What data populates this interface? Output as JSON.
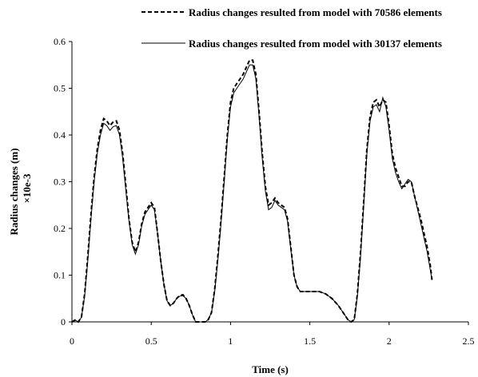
{
  "chart_data": {
    "type": "line",
    "title": "",
    "xlabel": "Time (s)",
    "ylabel": "Radius changes (m)",
    "ylabel_multiplier": "×10e-3",
    "xlim": [
      0,
      2.5
    ],
    "ylim": [
      0,
      0.6
    ],
    "x_ticks": [
      "0",
      "0.5",
      "1",
      "1.5",
      "2",
      "2.5"
    ],
    "y_ticks": [
      "0",
      "0.1",
      "0.2",
      "0.3",
      "0.4",
      "0.5",
      "0.6"
    ],
    "grid": false,
    "legend_position": "top-right",
    "series": [
      {
        "name": "Radius changes resulted from model with 70586 elements",
        "style": "dashed",
        "color": "#000000",
        "points": [
          [
            0,
            0.0
          ],
          [
            0.02,
            0.004
          ],
          [
            0.04,
            0.0
          ],
          [
            0.06,
            0.01
          ],
          [
            0.08,
            0.06
          ],
          [
            0.1,
            0.14
          ],
          [
            0.12,
            0.23
          ],
          [
            0.14,
            0.31
          ],
          [
            0.16,
            0.37
          ],
          [
            0.18,
            0.41
          ],
          [
            0.2,
            0.435
          ],
          [
            0.22,
            0.43
          ],
          [
            0.24,
            0.42
          ],
          [
            0.26,
            0.428
          ],
          [
            0.28,
            0.43
          ],
          [
            0.3,
            0.41
          ],
          [
            0.32,
            0.36
          ],
          [
            0.34,
            0.29
          ],
          [
            0.36,
            0.22
          ],
          [
            0.38,
            0.17
          ],
          [
            0.4,
            0.15
          ],
          [
            0.42,
            0.17
          ],
          [
            0.44,
            0.21
          ],
          [
            0.46,
            0.235
          ],
          [
            0.48,
            0.245
          ],
          [
            0.5,
            0.255
          ],
          [
            0.52,
            0.245
          ],
          [
            0.54,
            0.19
          ],
          [
            0.56,
            0.13
          ],
          [
            0.58,
            0.08
          ],
          [
            0.6,
            0.045
          ],
          [
            0.62,
            0.035
          ],
          [
            0.64,
            0.04
          ],
          [
            0.66,
            0.05
          ],
          [
            0.68,
            0.057
          ],
          [
            0.7,
            0.058
          ],
          [
            0.72,
            0.05
          ],
          [
            0.74,
            0.035
          ],
          [
            0.76,
            0.015
          ],
          [
            0.78,
            0.0
          ],
          [
            0.8,
            0.0
          ],
          [
            0.84,
            0.0
          ],
          [
            0.86,
            0.005
          ],
          [
            0.88,
            0.02
          ],
          [
            0.9,
            0.07
          ],
          [
            0.92,
            0.14
          ],
          [
            0.94,
            0.22
          ],
          [
            0.96,
            0.31
          ],
          [
            0.98,
            0.4
          ],
          [
            1.0,
            0.47
          ],
          [
            1.02,
            0.5
          ],
          [
            1.04,
            0.51
          ],
          [
            1.06,
            0.52
          ],
          [
            1.08,
            0.53
          ],
          [
            1.1,
            0.545
          ],
          [
            1.12,
            0.56
          ],
          [
            1.14,
            0.56
          ],
          [
            1.16,
            0.53
          ],
          [
            1.18,
            0.45
          ],
          [
            1.2,
            0.36
          ],
          [
            1.22,
            0.29
          ],
          [
            1.24,
            0.25
          ],
          [
            1.26,
            0.255
          ],
          [
            1.28,
            0.265
          ],
          [
            1.3,
            0.255
          ],
          [
            1.32,
            0.25
          ],
          [
            1.34,
            0.245
          ],
          [
            1.36,
            0.22
          ],
          [
            1.38,
            0.16
          ],
          [
            1.4,
            0.1
          ],
          [
            1.42,
            0.075
          ],
          [
            1.44,
            0.065
          ],
          [
            1.46,
            0.065
          ],
          [
            1.5,
            0.065
          ],
          [
            1.56,
            0.065
          ],
          [
            1.6,
            0.06
          ],
          [
            1.64,
            0.05
          ],
          [
            1.68,
            0.035
          ],
          [
            1.72,
            0.015
          ],
          [
            1.74,
            0.005
          ],
          [
            1.76,
            0.0
          ],
          [
            1.78,
            0.005
          ],
          [
            1.8,
            0.06
          ],
          [
            1.82,
            0.15
          ],
          [
            1.84,
            0.26
          ],
          [
            1.86,
            0.37
          ],
          [
            1.88,
            0.44
          ],
          [
            1.9,
            0.47
          ],
          [
            1.92,
            0.475
          ],
          [
            1.94,
            0.46
          ],
          [
            1.96,
            0.475
          ],
          [
            1.98,
            0.47
          ],
          [
            2.0,
            0.42
          ],
          [
            2.02,
            0.36
          ],
          [
            2.04,
            0.33
          ],
          [
            2.06,
            0.31
          ],
          [
            2.08,
            0.29
          ],
          [
            2.1,
            0.29
          ],
          [
            2.12,
            0.3
          ],
          [
            2.14,
            0.3
          ],
          [
            2.16,
            0.27
          ],
          [
            2.18,
            0.245
          ],
          [
            2.2,
            0.22
          ],
          [
            2.22,
            0.19
          ],
          [
            2.24,
            0.16
          ],
          [
            2.26,
            0.12
          ],
          [
            2.27,
            0.09
          ]
        ]
      },
      {
        "name": "Radius changes resulted from model with 30137 elements",
        "style": "solid",
        "color": "#000000",
        "points": [
          [
            0,
            0.0
          ],
          [
            0.02,
            0.004
          ],
          [
            0.04,
            0.0
          ],
          [
            0.06,
            0.01
          ],
          [
            0.08,
            0.055
          ],
          [
            0.1,
            0.13
          ],
          [
            0.12,
            0.22
          ],
          [
            0.14,
            0.3
          ],
          [
            0.16,
            0.36
          ],
          [
            0.18,
            0.4
          ],
          [
            0.2,
            0.425
          ],
          [
            0.22,
            0.42
          ],
          [
            0.24,
            0.41
          ],
          [
            0.26,
            0.418
          ],
          [
            0.28,
            0.42
          ],
          [
            0.3,
            0.4
          ],
          [
            0.32,
            0.35
          ],
          [
            0.34,
            0.28
          ],
          [
            0.36,
            0.215
          ],
          [
            0.38,
            0.165
          ],
          [
            0.4,
            0.145
          ],
          [
            0.42,
            0.165
          ],
          [
            0.44,
            0.205
          ],
          [
            0.46,
            0.23
          ],
          [
            0.48,
            0.24
          ],
          [
            0.5,
            0.25
          ],
          [
            0.52,
            0.24
          ],
          [
            0.54,
            0.19
          ],
          [
            0.56,
            0.13
          ],
          [
            0.58,
            0.08
          ],
          [
            0.6,
            0.045
          ],
          [
            0.62,
            0.035
          ],
          [
            0.64,
            0.04
          ],
          [
            0.66,
            0.05
          ],
          [
            0.68,
            0.055
          ],
          [
            0.7,
            0.056
          ],
          [
            0.72,
            0.05
          ],
          [
            0.74,
            0.035
          ],
          [
            0.76,
            0.015
          ],
          [
            0.78,
            0.0
          ],
          [
            0.8,
            0.0
          ],
          [
            0.84,
            0.0
          ],
          [
            0.86,
            0.005
          ],
          [
            0.88,
            0.02
          ],
          [
            0.9,
            0.065
          ],
          [
            0.92,
            0.13
          ],
          [
            0.94,
            0.21
          ],
          [
            0.96,
            0.3
          ],
          [
            0.98,
            0.39
          ],
          [
            1.0,
            0.46
          ],
          [
            1.02,
            0.49
          ],
          [
            1.04,
            0.5
          ],
          [
            1.06,
            0.51
          ],
          [
            1.08,
            0.52
          ],
          [
            1.1,
            0.535
          ],
          [
            1.12,
            0.55
          ],
          [
            1.14,
            0.55
          ],
          [
            1.16,
            0.52
          ],
          [
            1.18,
            0.44
          ],
          [
            1.2,
            0.35
          ],
          [
            1.22,
            0.28
          ],
          [
            1.24,
            0.24
          ],
          [
            1.26,
            0.245
          ],
          [
            1.28,
            0.26
          ],
          [
            1.3,
            0.25
          ],
          [
            1.32,
            0.245
          ],
          [
            1.34,
            0.24
          ],
          [
            1.36,
            0.215
          ],
          [
            1.38,
            0.155
          ],
          [
            1.4,
            0.1
          ],
          [
            1.42,
            0.075
          ],
          [
            1.44,
            0.065
          ],
          [
            1.46,
            0.065
          ],
          [
            1.5,
            0.065
          ],
          [
            1.56,
            0.065
          ],
          [
            1.6,
            0.06
          ],
          [
            1.64,
            0.05
          ],
          [
            1.68,
            0.035
          ],
          [
            1.72,
            0.015
          ],
          [
            1.74,
            0.005
          ],
          [
            1.76,
            0.0
          ],
          [
            1.78,
            0.005
          ],
          [
            1.8,
            0.055
          ],
          [
            1.82,
            0.14
          ],
          [
            1.84,
            0.25
          ],
          [
            1.86,
            0.36
          ],
          [
            1.88,
            0.43
          ],
          [
            1.9,
            0.46
          ],
          [
            1.92,
            0.465
          ],
          [
            1.94,
            0.45
          ],
          [
            1.96,
            0.48
          ],
          [
            1.98,
            0.46
          ],
          [
            2.0,
            0.41
          ],
          [
            2.02,
            0.35
          ],
          [
            2.04,
            0.32
          ],
          [
            2.06,
            0.3
          ],
          [
            2.08,
            0.285
          ],
          [
            2.1,
            0.295
          ],
          [
            2.12,
            0.305
          ],
          [
            2.14,
            0.3
          ],
          [
            2.16,
            0.27
          ],
          [
            2.18,
            0.24
          ],
          [
            2.2,
            0.21
          ],
          [
            2.22,
            0.18
          ],
          [
            2.24,
            0.15
          ],
          [
            2.26,
            0.11
          ],
          [
            2.27,
            0.09
          ]
        ]
      }
    ]
  }
}
